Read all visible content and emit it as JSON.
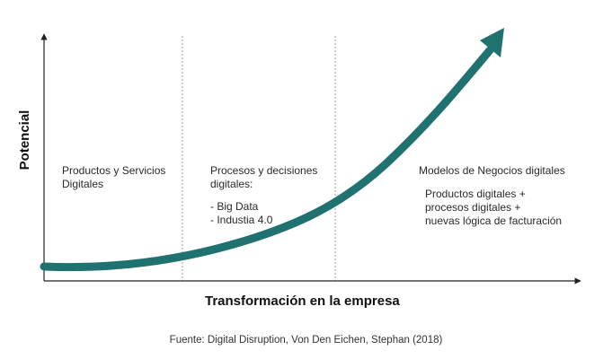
{
  "axes": {
    "y_label": "Potencial",
    "x_label": "Transformación en la empresa"
  },
  "stages": [
    {
      "title_lines": [
        "Productos y Servicios",
        "Digitales"
      ],
      "detail_lines": []
    },
    {
      "title_lines": [
        "Procesos y decisiones",
        "digitales:"
      ],
      "detail_lines": [
        "- Big Data",
        "- Industia 4.0"
      ]
    },
    {
      "title_lines": [
        "Modelos de Negocios digitales"
      ],
      "detail_lines": [
        "Productos digitales +",
        "procesos digitales +",
        "nuevas lógica de facturación"
      ]
    }
  ],
  "source": "Fuente: Digital Disruption, Von Den Eichen, Stephan (2018)",
  "colors": {
    "curve": "#1f7270",
    "axis": "#222222",
    "divider": "#9a9a9a"
  }
}
